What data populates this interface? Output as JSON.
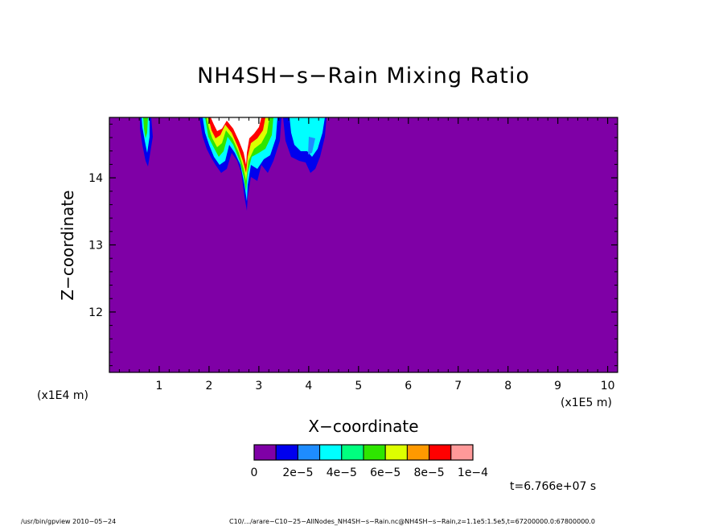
{
  "chart_data": {
    "type": "heatmap",
    "title": "NH4SH−s−Rain Mixing Ratio",
    "xlabel": "X−coordinate",
    "ylabel": "Z−coordinate",
    "x_scale_label": "(x1E5 m)",
    "y_scale_label": "(x1E4 m)",
    "x_ticks": [
      "1",
      "2",
      "3",
      "4",
      "5",
      "6",
      "7",
      "8",
      "9",
      "10"
    ],
    "y_ticks": [
      "12",
      "13",
      "14"
    ],
    "xlim": [
      0,
      10.2
    ],
    "ylim": [
      11.1,
      14.9
    ],
    "colorbar": {
      "colors": [
        "#7f00a6",
        "#0000ee",
        "#1e8cff",
        "#00ffff",
        "#00ff7f",
        "#2ee600",
        "#ddff00",
        "#ff9900",
        "#ff0000",
        "#ff9999"
      ],
      "labels": [
        "0",
        "2e−5",
        "4e−5",
        "6e−5",
        "8e−5",
        "1e−4"
      ]
    },
    "background_value_color": "#7f00a6",
    "time_label": "t=6.766e+07 s"
  },
  "footer": {
    "left": "/usr/bin/gpview  2010−05−24",
    "right": "C10/.../arare−C10−25−AllNodes_NH4SH−s−Rain.nc@NH4SH−s−Rain,z=1.1e5:1.5e5,t=67200000.0:67800000.0"
  }
}
